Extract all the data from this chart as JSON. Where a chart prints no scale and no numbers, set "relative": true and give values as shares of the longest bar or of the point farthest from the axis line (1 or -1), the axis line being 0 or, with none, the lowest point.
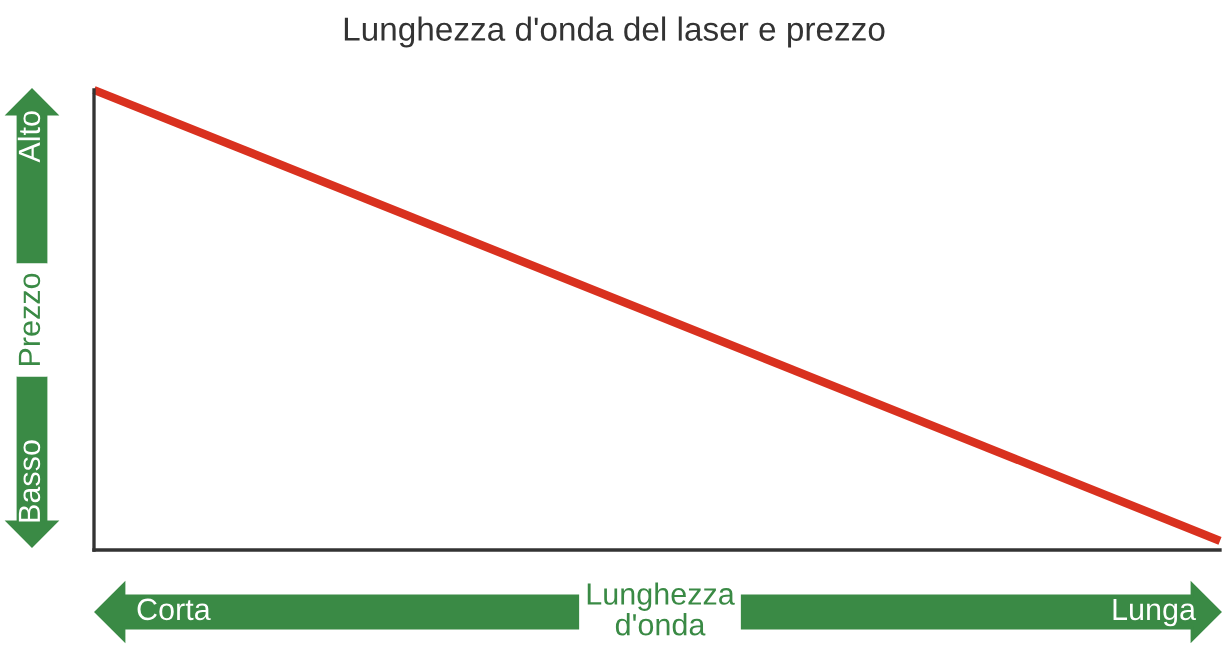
{
  "chart_data": {
    "type": "line",
    "title": "Lunghezza d'onda del laser e prezzo",
    "relative": true,
    "categories": [
      null,
      null
    ],
    "series": [
      {
        "color": "#d9311f",
        "values": [
          1,
          0.02
        ]
      }
    ],
    "xlabel": "Lunghezza\nd'onda",
    "ylabel": "Prezzo",
    "annotations": [
      "Corta",
      "Lunga",
      "Basso",
      "Alto"
    ],
    "marker": "none",
    "line_style": "solid"
  }
}
